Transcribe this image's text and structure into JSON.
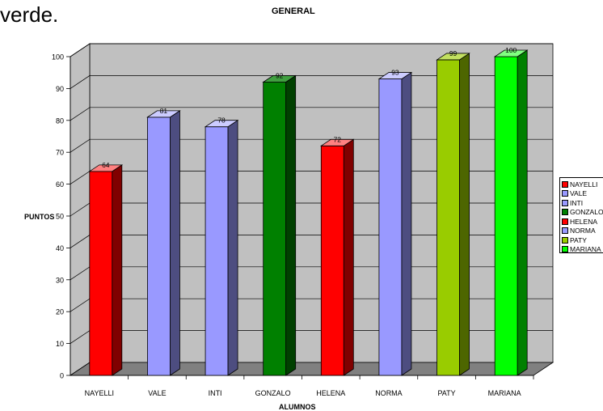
{
  "page_fragment": "verde.",
  "chart_data": {
    "type": "bar",
    "title": "GENERAL",
    "xlabel": "ALUMNOS",
    "ylabel": "PUNTOS",
    "ylim": [
      0,
      100
    ],
    "yticks": [
      0,
      10,
      20,
      30,
      40,
      50,
      60,
      70,
      80,
      90,
      100
    ],
    "categories": [
      "NAYELLI",
      "VALE",
      "INTI",
      "GONZALO",
      "HELENA",
      "NORMA",
      "PATY",
      "MARIANA"
    ],
    "values": [
      64,
      81,
      78,
      92,
      72,
      93,
      99,
      100
    ],
    "data_labels": [
      "64",
      "81",
      "78",
      "92",
      "72",
      "93",
      "99",
      "100"
    ],
    "colors": [
      "#ff0000",
      "#9999ff",
      "#9999ff",
      "#008000",
      "#ff0000",
      "#9999ff",
      "#99cc00",
      "#00ff00"
    ],
    "side_colors": [
      "#800000",
      "#4d4d80",
      "#4d4d80",
      "#004000",
      "#800000",
      "#4d4d80",
      "#4d6600",
      "#008000"
    ],
    "top_colors": [
      "#ff8080",
      "#ccccff",
      "#ccccff",
      "#40a040",
      "#ff8080",
      "#ccccff",
      "#c2e060",
      "#80ff80"
    ],
    "wall_color": "#c0c0c0",
    "floor_color": "#808080",
    "grid": true,
    "legend": {
      "position": "right",
      "entries": [
        "NAYELLI",
        "VALE",
        "INTI",
        "GONZALO",
        "HELENA",
        "NORMA",
        "PATY",
        "MARIANA"
      ]
    }
  }
}
